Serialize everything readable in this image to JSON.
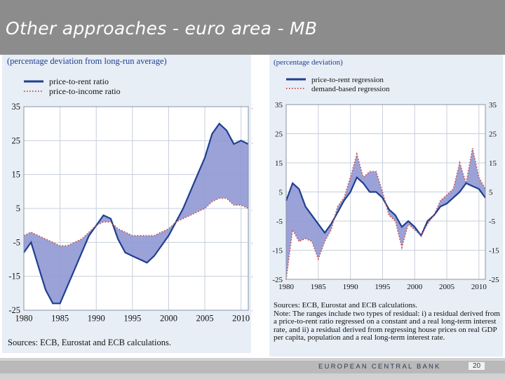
{
  "slide": {
    "title": "Other approaches - euro area - MB",
    "footer_bank": "EUROPEAN CENTRAL BANK",
    "page_number": "20"
  },
  "chart_data": [
    {
      "type": "line",
      "subtitle": "(percentage deviation from long-run average)",
      "series": [
        {
          "name": "price-to-rent ratio",
          "color": "#1f3f8f",
          "x": [
            1980,
            1981,
            1982,
            1983,
            1984,
            1985,
            1986,
            1987,
            1988,
            1989,
            1990,
            1991,
            1992,
            1993,
            1994,
            1995,
            1996,
            1997,
            1998,
            1999,
            2000,
            2001,
            2002,
            2003,
            2004,
            2005,
            2006,
            2007,
            2008,
            2009,
            2010,
            2011
          ],
          "values": [
            -8,
            -5,
            -12,
            -19,
            -23,
            -23,
            -18,
            -13,
            -8,
            -3,
            0,
            3,
            2,
            -4,
            -8,
            -9,
            -10,
            -11,
            -9,
            -6,
            -3,
            1,
            5,
            10,
            15,
            20,
            27,
            30,
            28,
            24,
            25,
            24
          ]
        },
        {
          "name": "price-to-income ratio",
          "color": "#d0504a",
          "x": [
            1980,
            1981,
            1982,
            1983,
            1984,
            1985,
            1986,
            1987,
            1988,
            1989,
            1990,
            1991,
            1992,
            1993,
            1994,
            1995,
            1996,
            1997,
            1998,
            1999,
            2000,
            2001,
            2002,
            2003,
            2004,
            2005,
            2006,
            2007,
            2008,
            2009,
            2010,
            2011
          ],
          "values": [
            -3,
            -2,
            -3,
            -4,
            -5,
            -6,
            -6,
            -5,
            -4,
            -2,
            0,
            1,
            1,
            -1,
            -2,
            -3,
            -3,
            -3,
            -3,
            -2,
            -1,
            1,
            2,
            3,
            4,
            5,
            7,
            8,
            8,
            6,
            6,
            5
          ]
        }
      ],
      "xticks": [
        1980,
        1985,
        1990,
        1995,
        2000,
        2005,
        2010
      ],
      "yticks": [
        -25,
        -15,
        -5,
        5,
        15,
        25,
        35
      ],
      "xlim": [
        1980,
        2011
      ],
      "ylim": [
        -25,
        35
      ],
      "grid": true,
      "legend": "top-left",
      "source": "Sources: ECB, Eurostat and ECB calculations."
    },
    {
      "type": "line",
      "subtitle": "(percentage deviation)",
      "series": [
        {
          "name": "price-to-rent regression",
          "color": "#1f3f8f",
          "x": [
            1980,
            1981,
            1982,
            1983,
            1984,
            1985,
            1986,
            1987,
            1988,
            1989,
            1990,
            1991,
            1992,
            1993,
            1994,
            1995,
            1996,
            1997,
            1998,
            1999,
            2000,
            2001,
            2002,
            2003,
            2004,
            2005,
            2006,
            2007,
            2008,
            2009,
            2010,
            2011
          ],
          "values": [
            2,
            8,
            6,
            0,
            -3,
            -6,
            -9,
            -6,
            -2,
            2,
            5,
            10,
            8,
            5,
            5,
            3,
            -1,
            -3,
            -7,
            -5,
            -7,
            -10,
            -5,
            -3,
            0,
            1,
            3,
            5,
            8,
            7,
            6,
            3
          ]
        },
        {
          "name": "demand-based regression",
          "color": "#d0504a",
          "x": [
            1980,
            1981,
            1982,
            1983,
            1984,
            1985,
            1986,
            1987,
            1988,
            1989,
            1990,
            1991,
            1992,
            1993,
            1994,
            1995,
            1996,
            1997,
            1998,
            1999,
            2000,
            2001,
            2002,
            2003,
            2004,
            2005,
            2006,
            2007,
            2008,
            2009,
            2010,
            2011
          ],
          "values": [
            -25,
            -8,
            -12,
            -11,
            -12,
            -18,
            -12,
            -8,
            0,
            3,
            10,
            18,
            10,
            12,
            12,
            5,
            -3,
            -5,
            -14,
            -6,
            -8,
            -10,
            -6,
            -3,
            2,
            4,
            6,
            15,
            8,
            20,
            10,
            6
          ]
        }
      ],
      "xticks": [
        1980,
        1985,
        1990,
        1995,
        2000,
        2005,
        2010
      ],
      "yticks": [
        -25,
        -15,
        -5,
        5,
        15,
        25,
        35
      ],
      "xlim": [
        1980,
        2011
      ],
      "ylim": [
        -25,
        35
      ],
      "grid": true,
      "legend": "top-left",
      "source_lines": [
        "Sources: ECB, Eurostat and ECB calculations.",
        "Note: The ranges include two types of residual: i) a residual derived from a price-to-rent ratio regressed on a constant and a real long-term interest rate, and ii) a residual derived from regressing house prices on real GDP per capita, population and a real long-term interest rate."
      ]
    }
  ]
}
